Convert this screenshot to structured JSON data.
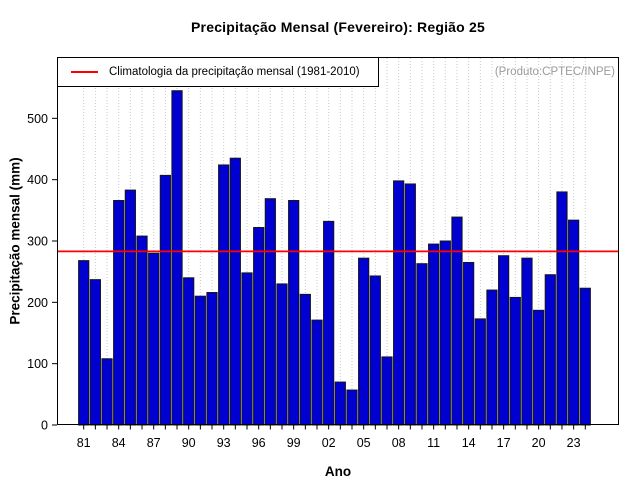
{
  "chart_data": {
    "type": "bar",
    "title": "Precipitação Mensal (Fevereiro): Região 25",
    "xlabel": "Ano",
    "ylabel": "Precipitação mensal (mm)",
    "watermark": "(Produto:CPTEC/INPE)",
    "legend": {
      "label": "Climatologia da precipitação mensal (1981-2010)",
      "line_color": "#ff0000",
      "position": "top-left"
    },
    "years": [
      1981,
      1982,
      1983,
      1984,
      1985,
      1986,
      1987,
      1988,
      1989,
      1990,
      1991,
      1992,
      1993,
      1994,
      1995,
      1996,
      1997,
      1998,
      1999,
      2000,
      2001,
      2002,
      2003,
      2004,
      2005,
      2006,
      2007,
      2008,
      2009,
      2010,
      2011,
      2012,
      2013,
      2014,
      2015,
      2016,
      2017,
      2018,
      2019,
      2020,
      2021,
      2022,
      2023,
      2024
    ],
    "values": [
      268,
      237,
      108,
      366,
      383,
      308,
      280,
      407,
      545,
      240,
      210,
      216,
      424,
      435,
      248,
      322,
      369,
      230,
      366,
      213,
      171,
      332,
      70,
      57,
      272,
      243,
      111,
      398,
      393,
      263,
      295,
      300,
      339,
      265,
      173,
      220,
      276,
      208,
      272,
      187,
      245,
      380,
      334,
      223
    ],
    "climatology_value": 283,
    "ylim": [
      0,
      600
    ],
    "yticks": [
      0,
      100,
      200,
      300,
      400,
      500
    ],
    "x_tick_labels": [
      "81",
      "84",
      "87",
      "90",
      "93",
      "96",
      "99",
      "02",
      "05",
      "08",
      "11",
      "14",
      "17",
      "20",
      "23"
    ],
    "x_label_every": 3,
    "grid": "vertical-dotted",
    "bar_color": "#0000d0",
    "bar_border_color": "#14141e",
    "grid_color": "#c8c8c8",
    "axis_color": "#000000",
    "watermark_color": "#9b9b9b"
  }
}
